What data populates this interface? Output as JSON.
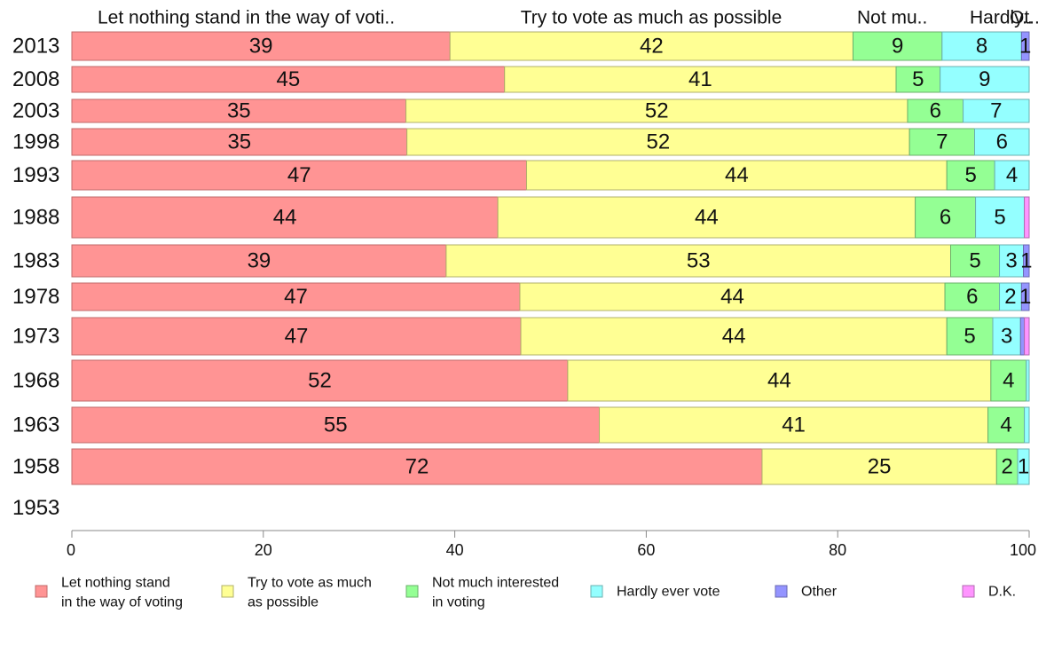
{
  "chart_data": {
    "type": "bar",
    "orientation": "horizontal",
    "stacked": true,
    "title": "",
    "xlabel": "",
    "ylabel": "",
    "xlim": [
      0,
      100
    ],
    "x_ticks": [
      "0",
      "20",
      "40",
      "60",
      "80",
      "100"
    ],
    "grid": false,
    "legend_position": "bottom",
    "header_labels": [
      "Let nothing stand in the way of voti..",
      "Try to vote as much as possible",
      "Not mu..",
      "Hardly..",
      "Ot.."
    ],
    "categories": [
      "2013",
      "2008",
      "2003",
      "1998",
      "1993",
      "1988",
      "1983",
      "1978",
      "1973",
      "1968",
      "1963",
      "1958",
      "1953"
    ],
    "series": [
      {
        "name": "Let nothing stand in the way of voting",
        "legend_lines": [
          "Let nothing stand",
          "in the way of voting"
        ],
        "color": "#ff9494",
        "stroke": "#c06a6a",
        "values": [
          39.5,
          45.2,
          34.9,
          35.0,
          47.5,
          44.5,
          39.1,
          46.8,
          46.9,
          51.8,
          55.1,
          72.1,
          null
        ],
        "labels": [
          "39",
          "45",
          "35",
          "35",
          "47",
          "44",
          "39",
          "47",
          "47",
          "52",
          "55",
          "72",
          ""
        ]
      },
      {
        "name": "Try to vote as much as possible",
        "legend_lines": [
          "Try to vote as much",
          "as possible"
        ],
        "color": "#ffff94",
        "stroke": "#b0b06a",
        "values": [
          42.1,
          40.9,
          52.4,
          52.5,
          43.9,
          43.6,
          52.7,
          44.4,
          44.5,
          44.2,
          40.6,
          24.5,
          null
        ],
        "labels": [
          "42",
          "41",
          "52",
          "52",
          "44",
          "44",
          "53",
          "44",
          "44",
          "44",
          "41",
          "25",
          ""
        ]
      },
      {
        "name": "Not much interested in voting",
        "legend_lines": [
          "Not much interested",
          "in voting"
        ],
        "color": "#94ff94",
        "stroke": "#6ab06a",
        "values": [
          9.3,
          4.6,
          5.8,
          6.8,
          5.0,
          6.3,
          5.1,
          5.7,
          4.8,
          3.7,
          3.8,
          2.2,
          null
        ],
        "labels": [
          "9",
          "5",
          "6",
          "7",
          "5",
          "6",
          "5",
          "6",
          "5",
          "4",
          "4",
          "2",
          ""
        ]
      },
      {
        "name": "Hardly ever vote",
        "legend_lines": [
          "Hardly ever vote"
        ],
        "color": "#94ffff",
        "stroke": "#6ab0b0",
        "values": [
          8.3,
          9.3,
          6.9,
          5.7,
          3.6,
          5.1,
          2.5,
          2.3,
          2.9,
          0.3,
          0.5,
          1.2,
          null
        ],
        "labels": [
          "8",
          "9",
          "7",
          "6",
          "4",
          "5",
          "3",
          "2",
          "3",
          "",
          "",
          "1",
          ""
        ]
      },
      {
        "name": "Other",
        "legend_lines": [
          "Other"
        ],
        "color": "#9494ff",
        "stroke": "#6a6ab0",
        "values": [
          0.8,
          0.0,
          0.0,
          0.0,
          0.0,
          0.0,
          0.6,
          0.8,
          0.4,
          0.0,
          0.0,
          0.0,
          null
        ],
        "labels": [
          "1",
          "",
          "",
          "",
          "",
          "",
          "1",
          "1",
          "",
          "",
          "",
          "",
          ""
        ]
      },
      {
        "name": "D.K.",
        "legend_lines": [
          "D.K."
        ],
        "color": "#ff94ff",
        "stroke": "#b06ab0",
        "values": [
          0.0,
          0.0,
          0.0,
          0.0,
          0.0,
          0.5,
          0.0,
          0.0,
          0.5,
          0.0,
          0.0,
          0.0,
          null
        ],
        "labels": [
          "",
          "",
          "",
          "",
          "",
          "",
          "",
          "",
          "",
          "",
          "",
          "",
          ""
        ]
      }
    ]
  }
}
